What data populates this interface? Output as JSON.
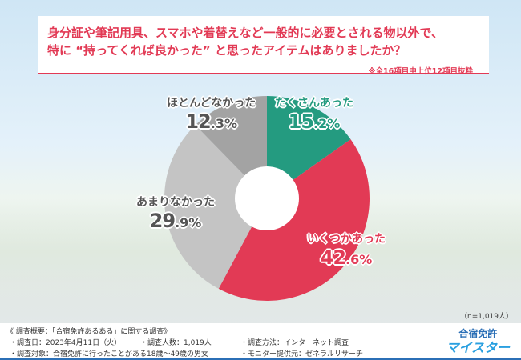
{
  "title": {
    "line1": "身分証や筆記用具、スマホや着替えなど一般的に必要とされる物以外で、",
    "line2": "特に “持ってくれば良かった” と思ったアイテムはありましたか？"
  },
  "note": "※全16項目中上位12項目抜粋",
  "sample": "（n=1,019人）",
  "chart_data": {
    "type": "pie",
    "donut": true,
    "categories": [
      "たくさんあった",
      "いくつかあった",
      "あまりなかった",
      "ほとんどなかった"
    ],
    "values": [
      15.2,
      42.6,
      29.9,
      12.3
    ],
    "value_labels": [
      {
        "int": "15",
        "dec": ".2%"
      },
      {
        "int": "42",
        "dec": ".6%"
      },
      {
        "int": "29",
        "dec": ".9%"
      },
      {
        "int": "12",
        "dec": ".3%"
      }
    ],
    "colors": [
      "#249b80",
      "#e23a55",
      "#c4c4c4",
      "#a3a3a3"
    ],
    "label_colors": [
      "#249b80",
      "#e23a55",
      "#555555",
      "#555555"
    ]
  },
  "footer": {
    "heading": "《 調査概要：「合宿免許あるある」に関する調査》",
    "date": "・調査日：2023年4月11日（火）",
    "count": "・調査人数：1,019人",
    "method": "・調査方法：インターネット調査",
    "target": "・調査対象：合宿免許に行ったことがある18歳〜49歳の男女",
    "provider": "・モニター提供元：ゼネラルリサーチ"
  },
  "logo": {
    "line1": "合宿免許",
    "line2": "マイスター"
  }
}
